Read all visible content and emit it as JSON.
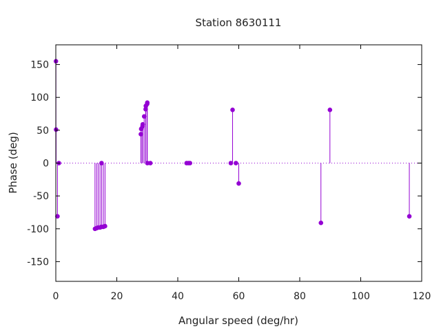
{
  "chart_data": {
    "type": "scatter",
    "style": "impulses-with-points",
    "title": "Station 8630111",
    "xlabel": "Angular speed (deg/hr)",
    "ylabel": "Phase (deg)",
    "xlim": [
      0,
      120
    ],
    "ylim": [
      -180,
      180
    ],
    "xticks": [
      0,
      20,
      40,
      60,
      80,
      100,
      120
    ],
    "yticks": [
      -150,
      -100,
      -50,
      0,
      50,
      100,
      150
    ],
    "grid": false,
    "zero_line": "dotted",
    "series_color": "#9400d3",
    "series": [
      {
        "points": [
          [
            0.04,
            155
          ],
          [
            0.08,
            51
          ],
          [
            0.54,
            -81
          ],
          [
            1.0,
            0
          ],
          [
            12.85,
            -100
          ],
          [
            13.4,
            -99
          ],
          [
            13.94,
            -98
          ],
          [
            14.5,
            -98
          ],
          [
            15.0,
            0
          ],
          [
            15.04,
            -97
          ],
          [
            15.6,
            -97
          ],
          [
            16.14,
            -96
          ],
          [
            27.9,
            44
          ],
          [
            28.0,
            52
          ],
          [
            28.44,
            56
          ],
          [
            28.51,
            59
          ],
          [
            28.98,
            71
          ],
          [
            29.46,
            82
          ],
          [
            29.53,
            87
          ],
          [
            29.96,
            90
          ],
          [
            30.0,
            92
          ],
          [
            30.04,
            0
          ],
          [
            31.0,
            0
          ],
          [
            42.9,
            0
          ],
          [
            43.5,
            0
          ],
          [
            44.0,
            0
          ],
          [
            57.4,
            0
          ],
          [
            57.97,
            81
          ],
          [
            59.07,
            0
          ],
          [
            60.0,
            -31
          ],
          [
            86.95,
            -91
          ],
          [
            89.9,
            81
          ],
          [
            115.94,
            -81
          ]
        ]
      }
    ]
  }
}
